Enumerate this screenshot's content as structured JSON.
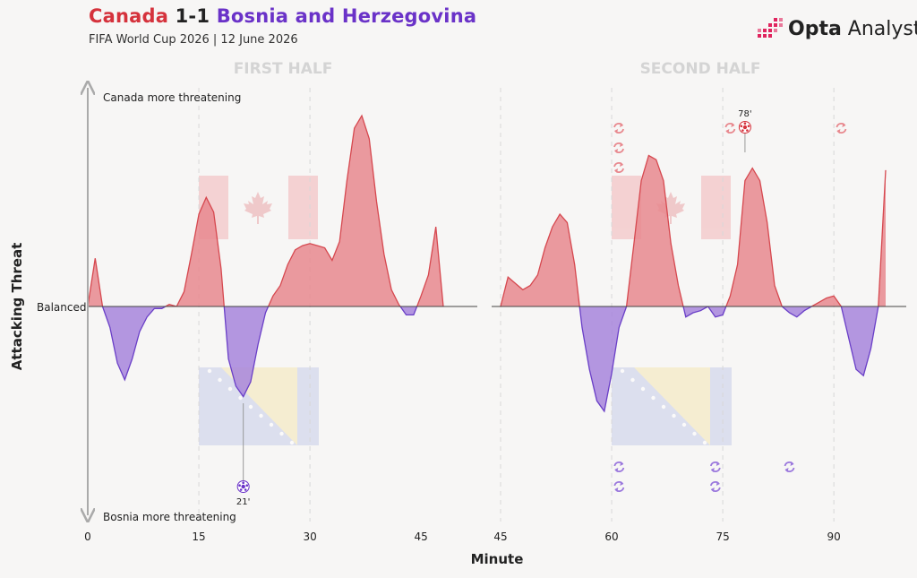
{
  "header": {
    "home_team": "Canada",
    "score": "1-1",
    "away_team": "Bosnia and Herzegovina",
    "subtitle": "FIFA World Cup 2026 | 12 June 2026",
    "brand_bold": "Opta",
    "brand_light": " Analyst",
    "brand_icon": "opta-bars-icon"
  },
  "colors": {
    "canada": "#e8888e",
    "canada_line": "#d6484f",
    "bosnia": "#a785dc",
    "bosnia_line": "#6a3fc7",
    "background": "#f7f6f5"
  },
  "chart_data": {
    "type": "area",
    "title": "Canada 1-1 Bosnia and Herzegovina",
    "xlabel": "Minute",
    "ylabel": "Attacking Threat",
    "y_top_label": "Canada more threatening",
    "y_bottom_label": "Bosnia more threatening",
    "y_mid_label": "Balanced",
    "ylim": [
      -1,
      1
    ],
    "grid": "vertical dashed lines at 15, 30, 60, 75, 90",
    "halves": [
      {
        "name": "FIRST HALF",
        "xlim": [
          0,
          52
        ],
        "ticks": [
          "0",
          "15",
          "30",
          "45"
        ],
        "x": [
          0,
          1,
          2,
          3,
          4,
          5,
          6,
          7,
          8,
          9,
          10,
          11,
          12,
          13,
          14,
          15,
          16,
          17,
          18,
          19,
          20,
          21,
          22,
          23,
          24,
          25,
          26,
          27,
          28,
          29,
          30,
          31,
          32,
          33,
          34,
          35,
          36,
          37,
          38,
          39,
          40,
          41,
          42,
          43,
          44,
          45,
          46,
          47,
          48,
          49,
          50
        ],
        "values": [
          0.0,
          0.23,
          0.0,
          -0.1,
          -0.27,
          -0.35,
          -0.25,
          -0.12,
          -0.05,
          -0.01,
          -0.01,
          0.01,
          0.0,
          0.07,
          0.25,
          0.44,
          0.52,
          0.45,
          0.18,
          -0.25,
          -0.38,
          -0.43,
          -0.36,
          -0.18,
          -0.03,
          0.05,
          0.1,
          0.2,
          0.27,
          0.29,
          0.3,
          0.29,
          0.28,
          0.22,
          0.31,
          0.6,
          0.85,
          0.91,
          0.8,
          0.5,
          0.25,
          0.08,
          0.01,
          -0.04,
          -0.04,
          0.05,
          0.15,
          0.38,
          0.0,
          0.0,
          0.0
        ]
      },
      {
        "name": "SECOND HALF",
        "xlim": [
          45,
          99
        ],
        "ticks": [
          "45",
          "60",
          "75",
          "90"
        ],
        "x": [
          45,
          46,
          47,
          48,
          49,
          50,
          51,
          52,
          53,
          54,
          55,
          56,
          57,
          58,
          59,
          60,
          61,
          62,
          63,
          64,
          65,
          66,
          67,
          68,
          69,
          70,
          71,
          72,
          73,
          74,
          75,
          76,
          77,
          78,
          79,
          80,
          81,
          82,
          83,
          84,
          85,
          86,
          87,
          88,
          89,
          90,
          91,
          92,
          93,
          94,
          95,
          96,
          97
        ],
        "values": [
          0.0,
          0.14,
          0.11,
          0.08,
          0.1,
          0.15,
          0.28,
          0.38,
          0.44,
          0.4,
          0.2,
          -0.1,
          -0.3,
          -0.45,
          -0.5,
          -0.32,
          -0.1,
          0.0,
          0.3,
          0.6,
          0.72,
          0.7,
          0.6,
          0.3,
          0.1,
          -0.05,
          -0.03,
          -0.02,
          0.0,
          -0.05,
          -0.04,
          0.05,
          0.2,
          0.6,
          0.66,
          0.6,
          0.4,
          0.1,
          0.0,
          -0.03,
          -0.05,
          -0.02,
          0.0,
          0.02,
          0.04,
          0.05,
          0.0,
          -0.15,
          -0.3,
          -0.33,
          -0.2,
          0.0,
          0.65
        ]
      }
    ],
    "goals": [
      {
        "team": "Bosnia",
        "minute": "21'",
        "x": 21,
        "half": 0
      },
      {
        "team": "Canada",
        "minute": "78'",
        "x": 78,
        "half": 1
      }
    ],
    "substitutions": {
      "canada": [
        60,
        60,
        60,
        76,
        91
      ],
      "bosnia": [
        61,
        61,
        74,
        74,
        84
      ]
    }
  }
}
